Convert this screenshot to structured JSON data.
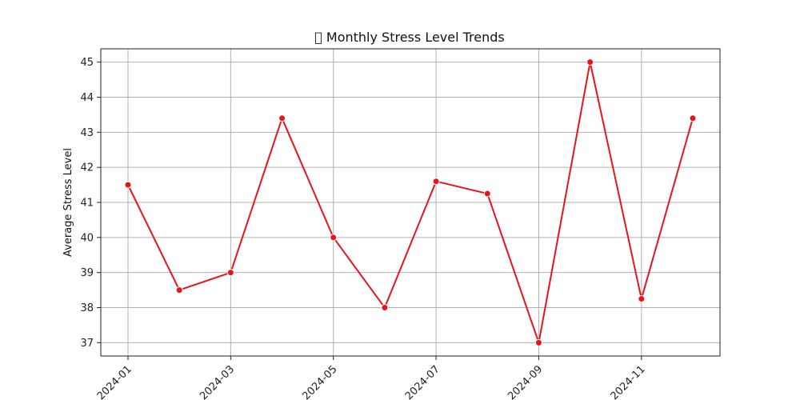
{
  "chart_data": {
    "type": "line",
    "title": "\u0000 Monthly Stress Level Trends",
    "xlabel": "",
    "ylabel": "Average Stress Level",
    "x": [
      "2024-01",
      "2024-02",
      "2024-03",
      "2024-04",
      "2024-05",
      "2024-06",
      "2024-07",
      "2024-08",
      "2024-09",
      "2024-10",
      "2024-11",
      "2024-12"
    ],
    "x_tick_labels": [
      "2024-01",
      "2024-03",
      "2024-05",
      "2024-07",
      "2024-09",
      "2024-11"
    ],
    "y_ticks": [
      37,
      38,
      39,
      40,
      41,
      42,
      43,
      44,
      45
    ],
    "ylim": [
      36.62,
      45.38
    ],
    "grid": true,
    "series": [
      {
        "values": [
          41.5,
          38.5,
          39.0,
          43.4,
          40.0,
          38.0,
          41.6,
          41.25,
          37.0,
          45.0,
          38.25,
          43.4
        ],
        "color": "#e8141b"
      }
    ]
  }
}
